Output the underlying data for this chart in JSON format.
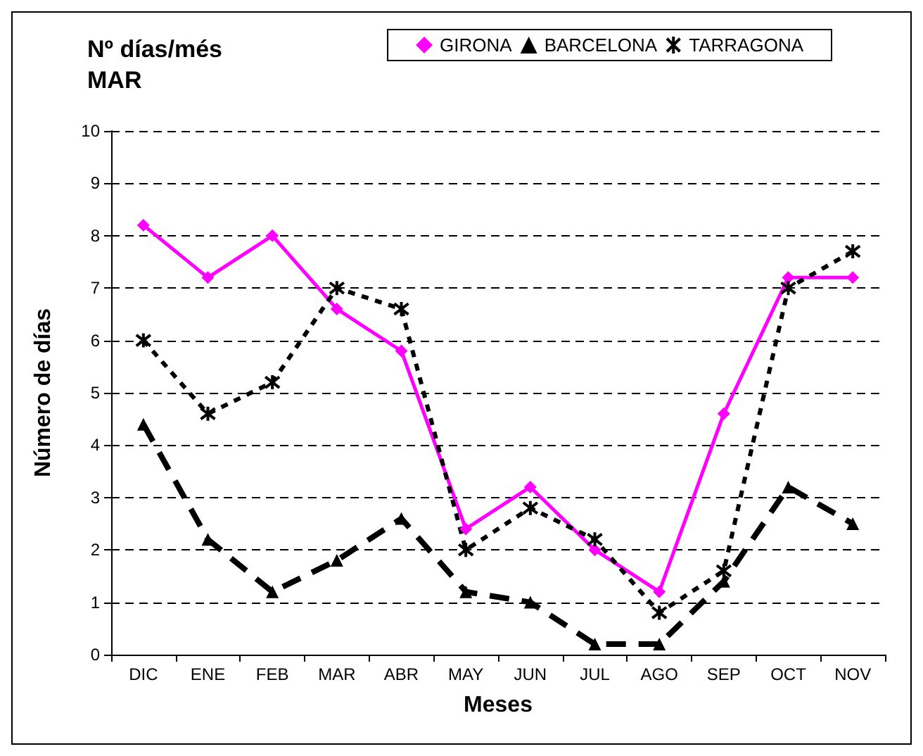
{
  "chart_data": {
    "type": "line",
    "title": "Nº días/més\nMAR",
    "xlabel": "Meses",
    "ylabel": "Número de días",
    "categories": [
      "DIC",
      "ENE",
      "FEB",
      "MAR",
      "ABR",
      "MAY",
      "JUN",
      "JUL",
      "AGO",
      "SEP",
      "OCT",
      "NOV"
    ],
    "series": [
      {
        "name": "GIRONA",
        "color": "#ff00ff",
        "marker": "diamond",
        "line_style": "solid",
        "values": [
          8.2,
          7.2,
          8.0,
          6.6,
          5.8,
          2.4,
          3.2,
          2.0,
          1.2,
          4.6,
          7.2,
          7.2
        ]
      },
      {
        "name": "BARCELONA",
        "color": "#000000",
        "marker": "triangle",
        "line_style": "dashed",
        "values": [
          4.4,
          2.2,
          1.2,
          1.8,
          2.6,
          1.2,
          1.0,
          0.2,
          0.2,
          1.4,
          3.2,
          2.5
        ]
      },
      {
        "name": "TARRAGONA",
        "color": "#000000",
        "marker": "cross",
        "line_style": "dotted",
        "values": [
          6.0,
          4.6,
          5.2,
          7.0,
          6.6,
          2.0,
          2.8,
          2.2,
          0.8,
          1.6,
          7.0,
          7.7
        ]
      }
    ],
    "ylim": [
      0,
      10
    ],
    "yticks": [
      0,
      1,
      2,
      3,
      4,
      5,
      6,
      7,
      8,
      9,
      10
    ],
    "grid": "y",
    "legend": "top right"
  }
}
